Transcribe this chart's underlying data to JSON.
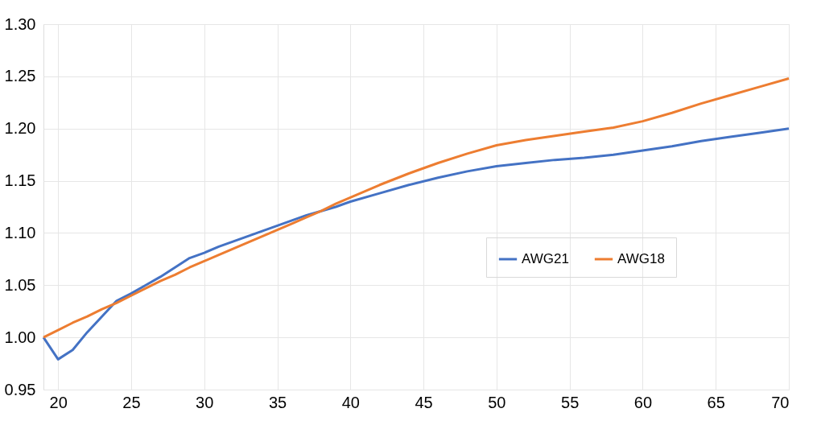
{
  "chart_data": {
    "type": "line",
    "x": [
      19,
      20,
      21,
      22,
      23,
      24,
      25,
      26,
      27,
      28,
      29,
      30,
      31,
      32,
      33,
      34,
      35,
      36,
      37,
      38,
      39,
      40,
      42,
      44,
      46,
      48,
      50,
      52,
      54,
      56,
      58,
      60,
      62,
      64,
      66,
      68,
      70
    ],
    "series": [
      {
        "name": "AWG21",
        "color": "#4472c4",
        "values": [
          1.0,
          0.979,
          0.988,
          1.005,
          1.02,
          1.035,
          1.042,
          1.05,
          1.058,
          1.067,
          1.076,
          1.081,
          1.087,
          1.092,
          1.097,
          1.102,
          1.107,
          1.112,
          1.117,
          1.121,
          1.125,
          1.13,
          1.138,
          1.146,
          1.153,
          1.159,
          1.164,
          1.167,
          1.17,
          1.172,
          1.175,
          1.179,
          1.183,
          1.188,
          1.192,
          1.196,
          1.2
        ]
      },
      {
        "name": "AWG18",
        "color": "#ed7d31",
        "values": [
          1.0,
          1.007,
          1.014,
          1.02,
          1.027,
          1.033,
          1.04,
          1.047,
          1.054,
          1.06,
          1.067,
          1.073,
          1.079,
          1.085,
          1.091,
          1.097,
          1.103,
          1.109,
          1.115,
          1.121,
          1.128,
          1.134,
          1.146,
          1.157,
          1.167,
          1.176,
          1.184,
          1.189,
          1.193,
          1.197,
          1.201,
          1.207,
          1.215,
          1.224,
          1.232,
          1.24,
          1.248
        ]
      }
    ],
    "xlim": [
      19,
      70
    ],
    "xticks": [
      20,
      25,
      30,
      35,
      40,
      45,
      50,
      55,
      60,
      65,
      70
    ],
    "ylim": [
      0.95,
      1.3
    ],
    "yticks": [
      {
        "value": 0.95,
        "label": "0.95"
      },
      {
        "value": 1.0,
        "label": "1.00"
      },
      {
        "value": 1.05,
        "label": "1.05"
      },
      {
        "value": 1.1,
        "label": "1.10"
      },
      {
        "value": 1.15,
        "label": "1.15"
      },
      {
        "value": 1.2,
        "label": "1.20"
      },
      {
        "value": 1.25,
        "label": "1.25"
      },
      {
        "value": 1.3,
        "label": "1.30"
      }
    ],
    "grid": true,
    "legend": "bottom right",
    "marker": "none",
    "line_style": "solid"
  }
}
